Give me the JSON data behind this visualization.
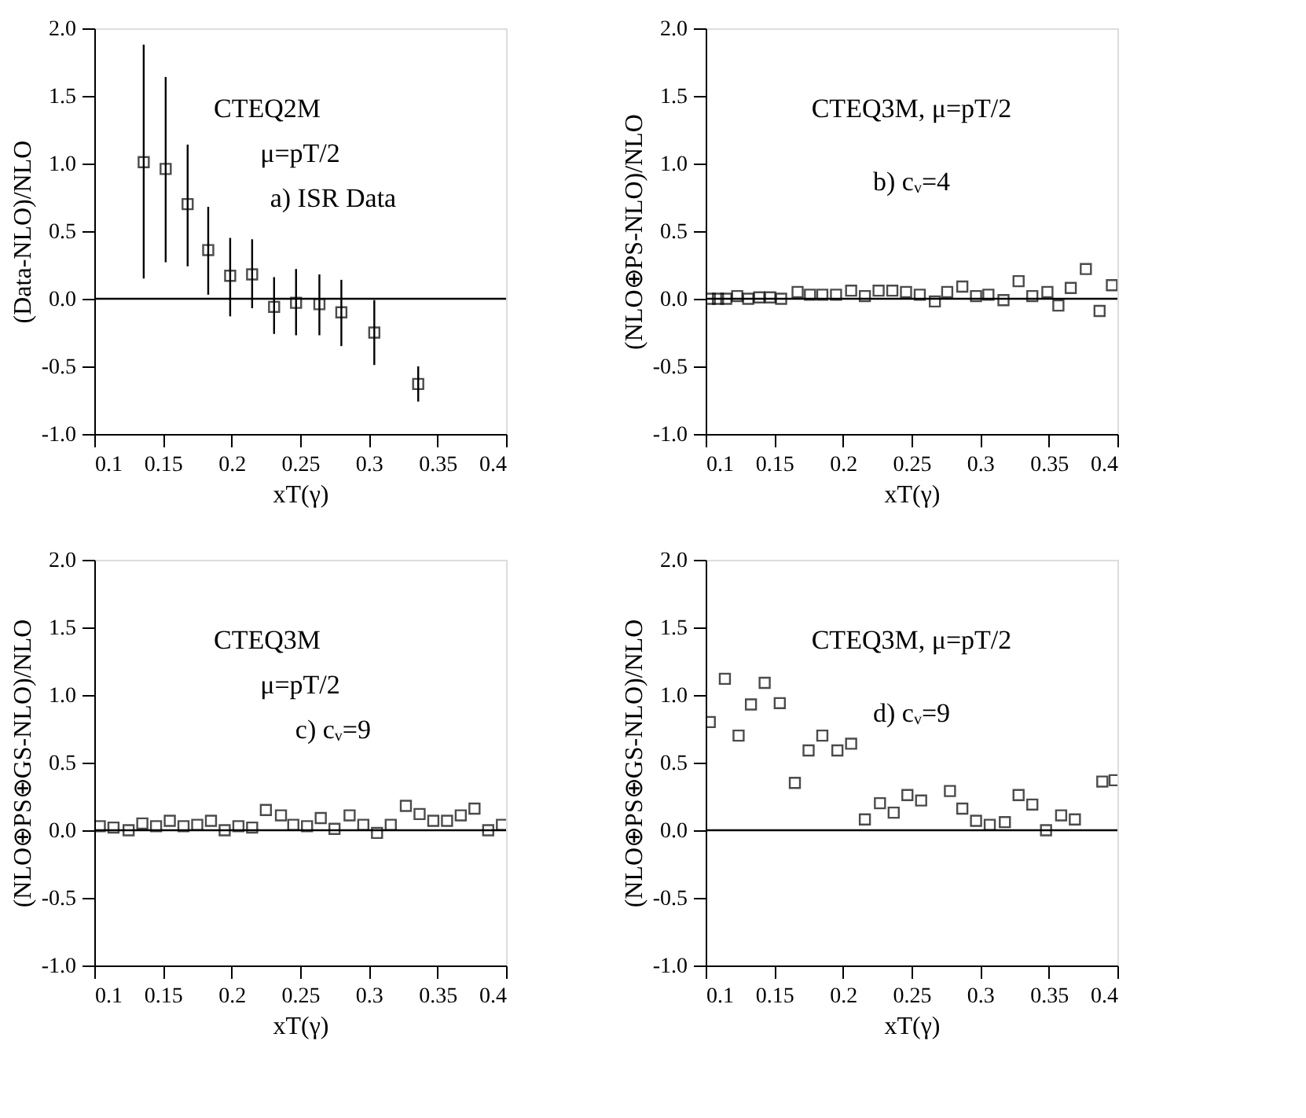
{
  "chart_data": [
    {
      "type": "scatter",
      "xlabel": "xT(γ)",
      "ylabel": "(Data-NLO)/NLO",
      "annotations": [
        "CTEQ2M",
        "μ=pT/2",
        "a) ISR Data"
      ],
      "marker": "square",
      "grid": false,
      "xlim": [
        0.1,
        0.4
      ],
      "xticks": [
        0.1,
        0.15,
        0.2,
        0.25,
        0.3,
        0.35,
        0.4
      ],
      "ylim": [
        -1.0,
        2.0
      ],
      "yticks": [
        {
          "value": -1.0,
          "label": "-1.0"
        },
        {
          "value": -0.5,
          "label": "-0.5"
        },
        {
          "value": 0.0,
          "label": "0.0"
        },
        {
          "value": 0.5,
          "label": "0.5"
        },
        {
          "value": 1.0,
          "label": "1.0"
        },
        {
          "value": 1.5,
          "label": "1.5"
        },
        {
          "value": 2.0,
          "label": "2.0"
        }
      ],
      "ref_lines": [
        {
          "axis": "y",
          "value": 0,
          "color": "#000000"
        }
      ],
      "series": [
        {
          "color": "#000000",
          "x": [
            0.136,
            0.152,
            0.168,
            0.183,
            0.199,
            0.215,
            0.231,
            0.247,
            0.264,
            0.28,
            0.304,
            0.336
          ],
          "values": [
            1.01,
            0.96,
            0.7,
            0.36,
            0.17,
            0.18,
            -0.06,
            -0.03,
            -0.04,
            -0.1,
            -0.25,
            -0.63
          ],
          "errors": [
            [
              0.15,
              1.88
            ],
            [
              0.27,
              1.64
            ],
            [
              0.24,
              1.14
            ],
            [
              0.03,
              0.68
            ],
            [
              -0.13,
              0.45
            ],
            [
              -0.07,
              0.44
            ],
            [
              -0.26,
              0.16
            ],
            [
              -0.27,
              0.22
            ],
            [
              -0.27,
              0.18
            ],
            [
              -0.35,
              0.14
            ],
            [
              -0.49,
              -0.01
            ],
            [
              -0.76,
              -0.5
            ]
          ]
        }
      ]
    },
    {
      "type": "scatter",
      "xlabel": "xT(γ)",
      "ylabel": "(NLO⊕PS-NLO)/NLO",
      "annotations": [
        "CTEQ3M,  μ=pT/2",
        "b) cᵥ=4"
      ],
      "marker": "square",
      "grid": false,
      "xlim": [
        0.1,
        0.4
      ],
      "xticks": [
        0.1,
        0.15,
        0.2,
        0.25,
        0.3,
        0.35,
        0.4
      ],
      "ylim": [
        -1.0,
        2.0
      ],
      "yticks": [
        {
          "value": -1.0,
          "label": "-1.0"
        },
        {
          "value": -0.5,
          "label": "-0.5"
        },
        {
          "value": 0.0,
          "label": "0.0"
        },
        {
          "value": 0.5,
          "label": "0.5"
        },
        {
          "value": 1.0,
          "label": "1.0"
        },
        {
          "value": 1.5,
          "label": "1.5"
        },
        {
          "value": 2.0,
          "label": "2.0"
        }
      ],
      "ref_lines": [
        {
          "axis": "y",
          "value": 0,
          "color": "#000000"
        }
      ],
      "series": [
        {
          "color": "#000000",
          "x": [
            0.103,
            0.109,
            0.115,
            0.123,
            0.131,
            0.139,
            0.147,
            0.155,
            0.167,
            0.176,
            0.185,
            0.195,
            0.206,
            0.216,
            0.226,
            0.236,
            0.246,
            0.256,
            0.267,
            0.276,
            0.287,
            0.297,
            0.306,
            0.317,
            0.328,
            0.338,
            0.349,
            0.357,
            0.366,
            0.377,
            0.387,
            0.396
          ],
          "values": [
            0.0,
            0.0,
            0.0,
            0.02,
            0.0,
            0.01,
            0.01,
            0.0,
            0.05,
            0.03,
            0.03,
            0.03,
            0.06,
            0.02,
            0.06,
            0.06,
            0.05,
            0.03,
            -0.02,
            0.05,
            0.09,
            0.02,
            0.03,
            -0.01,
            0.13,
            0.02,
            0.05,
            -0.05,
            0.08,
            0.22,
            -0.09,
            0.1
          ]
        }
      ]
    },
    {
      "type": "scatter",
      "xlabel": "xT(γ)",
      "ylabel": "(NLO⊕PS⊕GS-NLO)/NLO",
      "annotations": [
        "CTEQ3M",
        "μ=pT/2",
        "c) cᵥ=9"
      ],
      "marker": "square",
      "grid": false,
      "xlim": [
        0.1,
        0.4
      ],
      "xticks": [
        0.1,
        0.15,
        0.2,
        0.25,
        0.3,
        0.35,
        0.4
      ],
      "ylim": [
        -1.0,
        2.0
      ],
      "yticks": [
        {
          "value": -1.0,
          "label": "-1.0"
        },
        {
          "value": -0.5,
          "label": "-0.5"
        },
        {
          "value": 0.0,
          "label": "0.0"
        },
        {
          "value": 0.5,
          "label": "0.5"
        },
        {
          "value": 1.0,
          "label": "1.0"
        },
        {
          "value": 1.5,
          "label": "1.5"
        },
        {
          "value": 2.0,
          "label": "2.0"
        }
      ],
      "ref_lines": [
        {
          "axis": "y",
          "value": 0,
          "color": "#000000"
        }
      ],
      "series": [
        {
          "color": "#000000",
          "x": [
            0.104,
            0.114,
            0.125,
            0.135,
            0.145,
            0.155,
            0.165,
            0.175,
            0.185,
            0.195,
            0.205,
            0.215,
            0.225,
            0.236,
            0.245,
            0.255,
            0.265,
            0.275,
            0.286,
            0.296,
            0.306,
            0.316,
            0.327,
            0.337,
            0.347,
            0.357,
            0.367,
            0.377,
            0.387,
            0.397
          ],
          "values": [
            0.03,
            0.02,
            0.0,
            0.05,
            0.03,
            0.07,
            0.03,
            0.04,
            0.07,
            0.0,
            0.03,
            0.02,
            0.15,
            0.11,
            0.04,
            0.03,
            0.09,
            0.01,
            0.11,
            0.04,
            -0.02,
            0.04,
            0.18,
            0.12,
            0.07,
            0.07,
            0.11,
            0.16,
            0.0,
            0.04
          ]
        }
      ]
    },
    {
      "type": "scatter",
      "xlabel": "xT(γ)",
      "ylabel": "(NLO⊕PS⊕GS-NLO)/NLO",
      "annotations": [
        "CTEQ3M,  μ=pT/2",
        "d) cᵥ=9"
      ],
      "marker": "square",
      "grid": false,
      "xlim": [
        0.1,
        0.4
      ],
      "xticks": [
        0.1,
        0.15,
        0.2,
        0.25,
        0.3,
        0.35,
        0.4
      ],
      "ylim": [
        -1.0,
        2.0
      ],
      "yticks": [
        {
          "value": -1.0,
          "label": "-1.0"
        },
        {
          "value": -0.5,
          "label": "-0.5"
        },
        {
          "value": 0.0,
          "label": "0.0"
        },
        {
          "value": 0.5,
          "label": "0.5"
        },
        {
          "value": 1.0,
          "label": "1.0"
        },
        {
          "value": 1.5,
          "label": "1.5"
        },
        {
          "value": 2.0,
          "label": "2.0"
        }
      ],
      "ref_lines": [
        {
          "axis": "y",
          "value": 0,
          "color": "#000000"
        }
      ],
      "series": [
        {
          "color": "#000000",
          "x": [
            0.103,
            0.114,
            0.124,
            0.133,
            0.143,
            0.154,
            0.165,
            0.175,
            0.185,
            0.196,
            0.206,
            0.216,
            0.227,
            0.237,
            0.247,
            0.257,
            0.278,
            0.287,
            0.297,
            0.307,
            0.318,
            0.328,
            0.338,
            0.348,
            0.359,
            0.369,
            0.389,
            0.398
          ],
          "values": [
            0.8,
            1.12,
            0.7,
            0.93,
            1.09,
            0.94,
            0.35,
            0.59,
            0.7,
            0.59,
            0.64,
            0.08,
            0.2,
            0.13,
            0.26,
            0.22,
            0.29,
            0.16,
            0.07,
            0.04,
            0.06,
            0.26,
            0.19,
            0.0,
            0.11,
            0.08,
            0.36,
            0.37
          ]
        }
      ]
    }
  ]
}
